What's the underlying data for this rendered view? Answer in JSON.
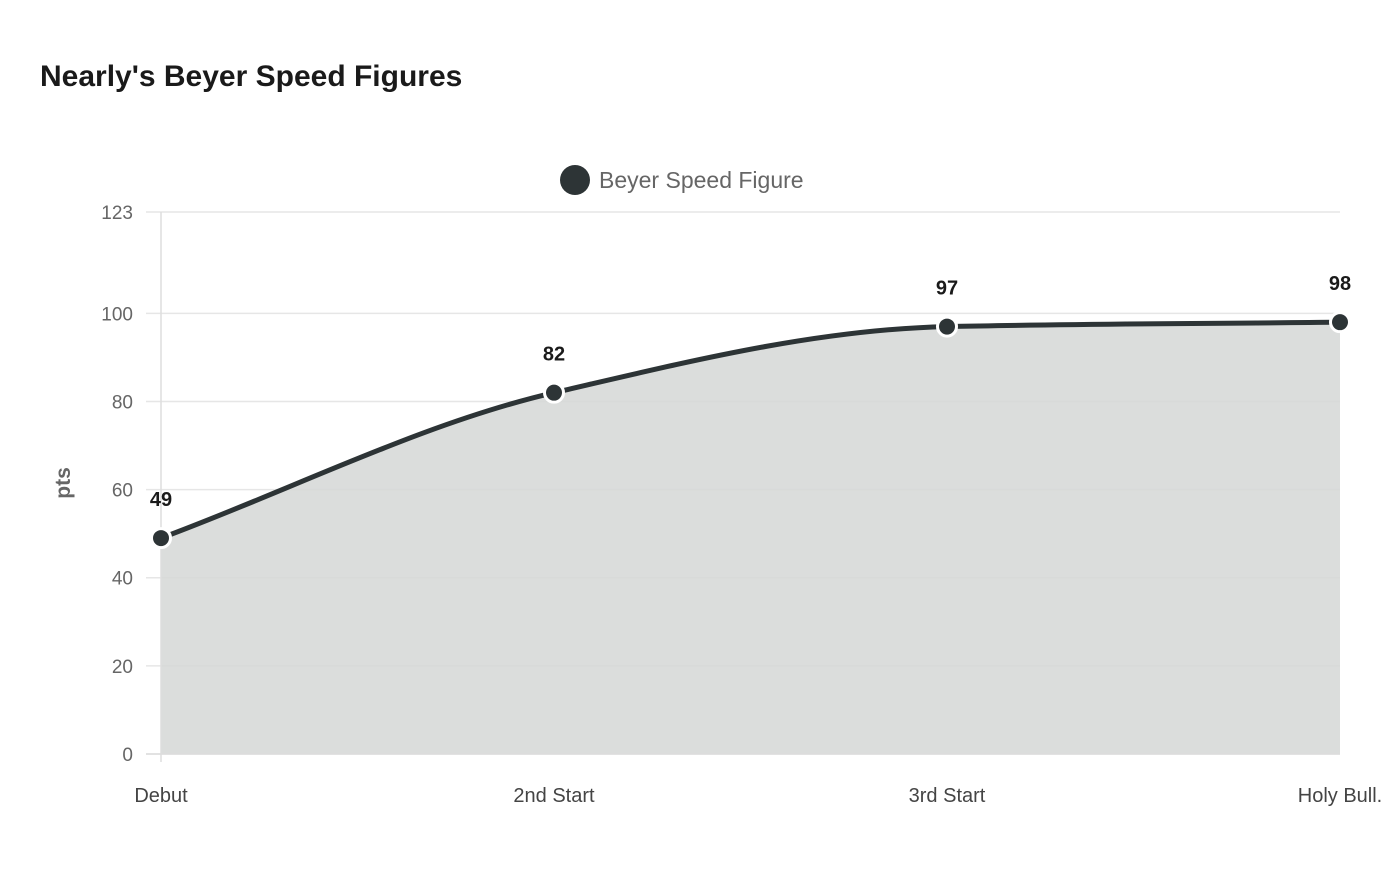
{
  "chart_data": {
    "type": "area",
    "title": "Nearly's Beyer Speed Figures",
    "ylabel": "pts",
    "xlabel": "",
    "categories": [
      "Debut",
      "2nd Start",
      "3rd Start",
      "Holy Bull."
    ],
    "series": [
      {
        "name": "Beyer Speed Figure",
        "values": [
          49,
          82,
          97,
          98
        ],
        "color": "#2d3436"
      }
    ],
    "yticks": [
      0,
      20,
      40,
      60,
      80,
      100,
      123
    ],
    "ylim": [
      0,
      123
    ],
    "legend": "top",
    "grid": true,
    "data_labels": true,
    "fill_color": "#d5d7d6"
  }
}
